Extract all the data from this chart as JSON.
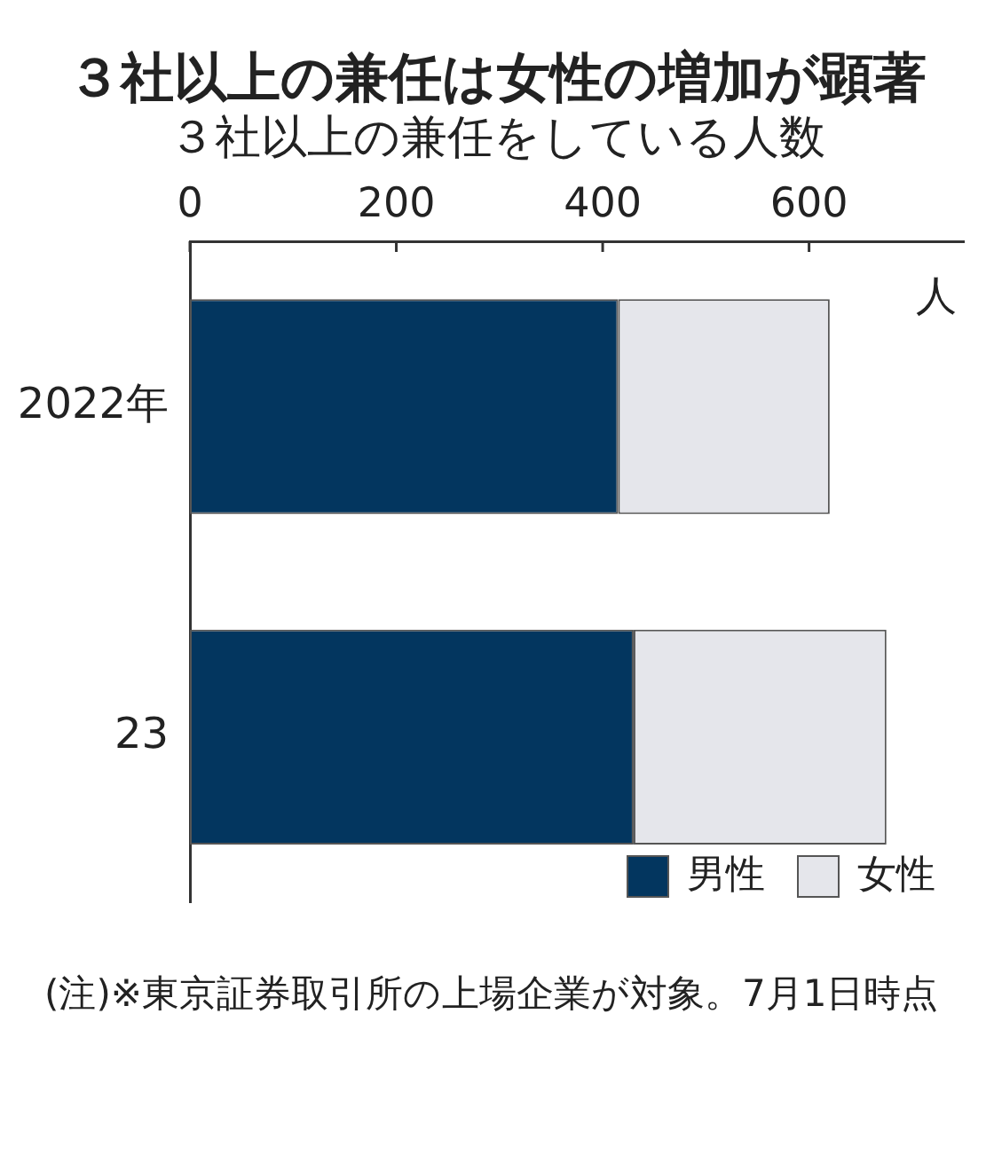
{
  "chart_data": {
    "type": "bar",
    "orientation": "horizontal",
    "stacked": true,
    "title": "３社以上の兼任は女性の増加が顕著",
    "subtitle": "３社以上の兼任をしている人数",
    "xlabel": "人",
    "categories": [
      "2022年",
      "23"
    ],
    "series": [
      {
        "name": "男性",
        "color": "#03365f",
        "values": [
          415,
          430
        ]
      },
      {
        "name": "女性",
        "color": "#e5e6eb",
        "values": [
          205,
          245
        ]
      }
    ],
    "xlim": [
      0,
      750
    ],
    "xticks": [
      0,
      200,
      400,
      600
    ],
    "grid": false,
    "legend": "bottom right",
    "annotations": [
      "(注)※東京証券取引所の上場企業が対象。7月1日時点"
    ]
  }
}
